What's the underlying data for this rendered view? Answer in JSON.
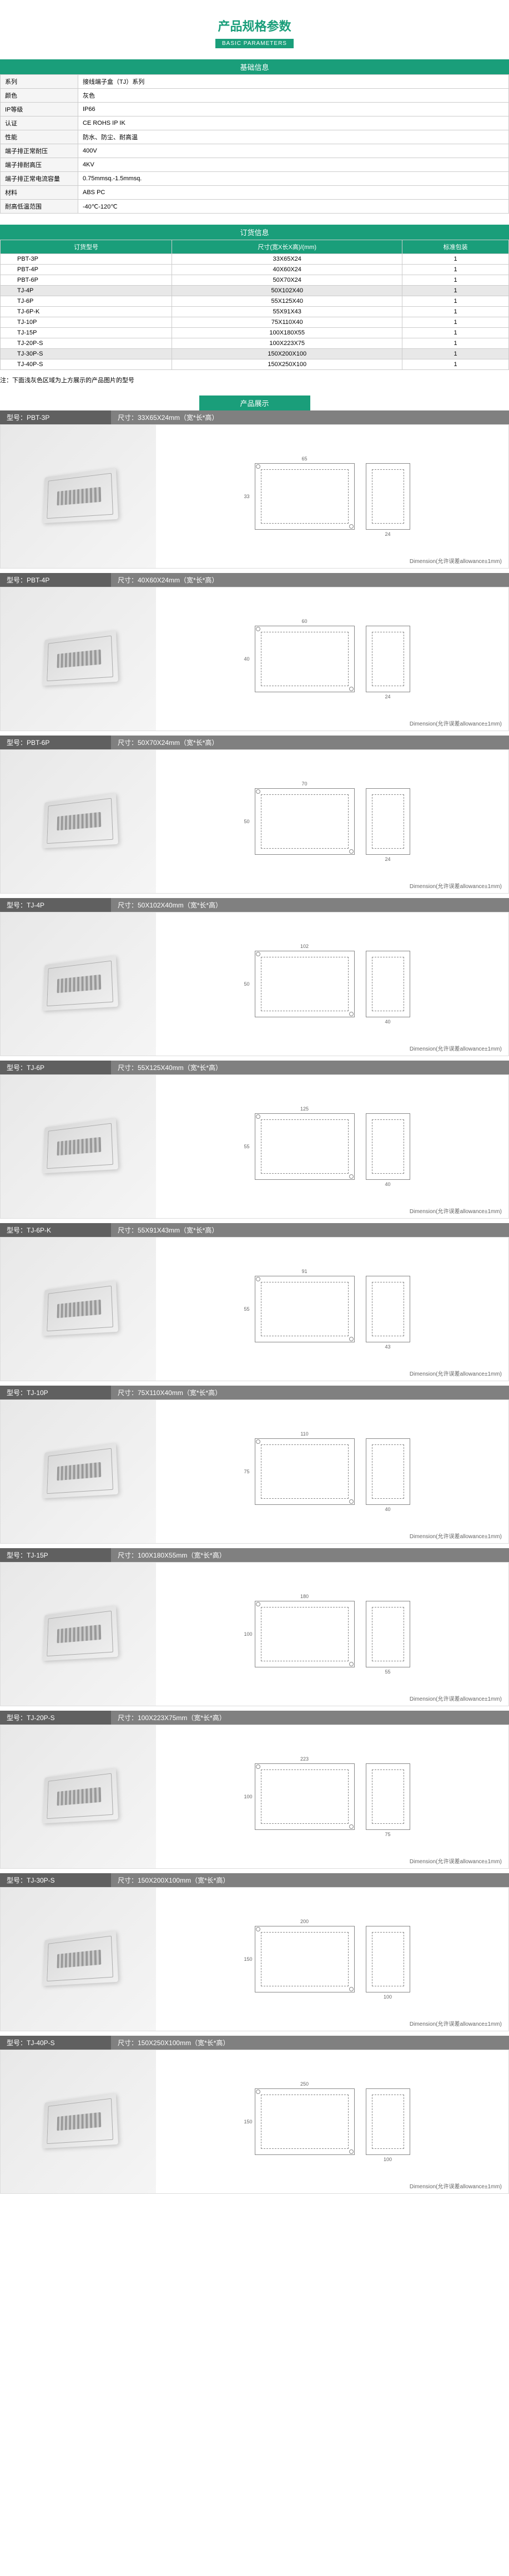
{
  "header": {
    "title": "产品规格参数",
    "subtitle": "BASIC PARAMETERS"
  },
  "basicInfoHeader": "基础信息",
  "specs": [
    {
      "label": "系列",
      "value": "接线端子盒（TJ）系列"
    },
    {
      "label": "颜色",
      "value": "灰色"
    },
    {
      "label": "IP等级",
      "value": "IP66"
    },
    {
      "label": "认证",
      "value": "CE  ROHS  IP  IK"
    },
    {
      "label": "性能",
      "value": "防水、防尘、耐高温"
    },
    {
      "label": "端子排正常耐压",
      "value": "400V"
    },
    {
      "label": "端子排耐高压",
      "value": "4KV"
    },
    {
      "label": "端子排正常电流容量",
      "value": "0.75mmsq.-1.5mmsq."
    },
    {
      "label": "材料",
      "value": "ABS  PC"
    },
    {
      "label": "耐高低温范围",
      "value": "-40℃-120℃"
    }
  ],
  "orderInfoHeader": "订货信息",
  "orderCols": {
    "model": "订货型号",
    "dim": "尺寸(宽X长X高)/(mm)",
    "pack": "标准包装"
  },
  "orders": [
    {
      "model": "PBT-3P",
      "dim": "33X65X24",
      "pack": "1",
      "hl": false
    },
    {
      "model": "PBT-4P",
      "dim": "40X60X24",
      "pack": "1",
      "hl": false
    },
    {
      "model": "PBT-6P",
      "dim": "50X70X24",
      "pack": "1",
      "hl": false
    },
    {
      "model": "TJ-4P",
      "dim": "50X102X40",
      "pack": "1",
      "hl": true
    },
    {
      "model": "TJ-6P",
      "dim": "55X125X40",
      "pack": "1",
      "hl": false
    },
    {
      "model": "TJ-6P-K",
      "dim": "55X91X43",
      "pack": "1",
      "hl": false
    },
    {
      "model": "TJ-10P",
      "dim": "75X110X40",
      "pack": "1",
      "hl": false
    },
    {
      "model": "TJ-15P",
      "dim": "100X180X55",
      "pack": "1",
      "hl": false
    },
    {
      "model": "TJ-20P-S",
      "dim": "100X223X75",
      "pack": "1",
      "hl": false
    },
    {
      "model": "TJ-30P-S",
      "dim": "150X200X100",
      "pack": "1",
      "hl": true
    },
    {
      "model": "TJ-40P-S",
      "dim": "150X250X100",
      "pack": "1",
      "hl": false
    }
  ],
  "note": "注：下面浅灰色区域为上方展示的产品图片的型号",
  "productShowHeader": "产品展示",
  "dimNote": "Dimension(允许误差allowance±1mm)",
  "modelLabel": "型号：",
  "dimLabel": "尺寸：",
  "dimSuffix": "mm（宽*长*高）",
  "products": [
    {
      "model": "PBT-3P",
      "dim": "33X65X24"
    },
    {
      "model": "PBT-4P",
      "dim": "40X60X24"
    },
    {
      "model": "PBT-6P",
      "dim": "50X70X24"
    },
    {
      "model": "TJ-4P",
      "dim": "50X102X40"
    },
    {
      "model": "TJ-6P",
      "dim": "55X125X40"
    },
    {
      "model": "TJ-6P-K",
      "dim": "55X91X43"
    },
    {
      "model": "TJ-10P",
      "dim": "75X110X40"
    },
    {
      "model": "TJ-15P",
      "dim": "100X180X55"
    },
    {
      "model": "TJ-20P-S",
      "dim": "100X223X75"
    },
    {
      "model": "TJ-30P-S",
      "dim": "150X200X100"
    },
    {
      "model": "TJ-40P-S",
      "dim": "150X250X100"
    }
  ],
  "colors": {
    "primary": "#1a9e7a",
    "gray": "#808080",
    "darkGray": "#606060",
    "border": "#cccccc",
    "bgLight": "#f5f5f5",
    "highlight": "#e8e8e8"
  }
}
